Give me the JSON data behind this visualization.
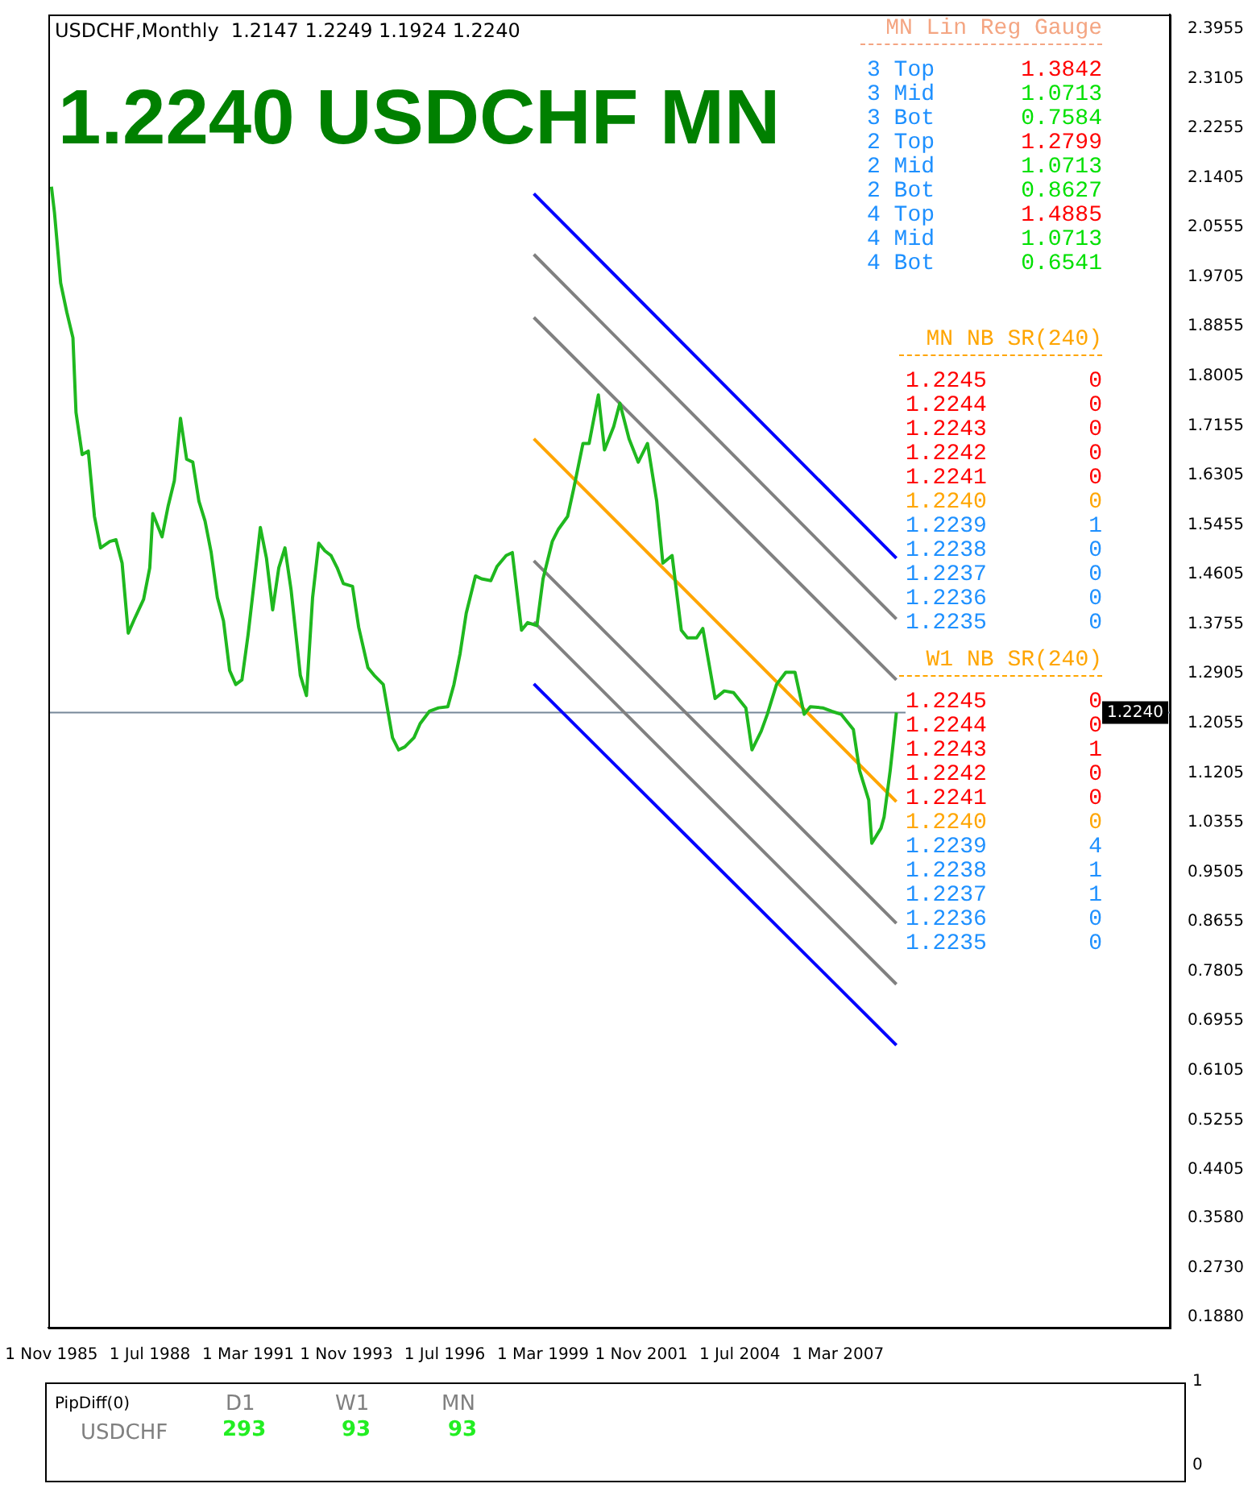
{
  "chart_data": [
    {
      "type": "line",
      "title": "1.2240 USDCHF MN",
      "subtitle": "USDCHF,Monthly  1.2147 1.2249 1.1924 1.2240",
      "marker": "none",
      "line_style": "solid",
      "xlim": [
        "1985-10",
        "2016-03"
      ],
      "xticks": [
        {
          "value": "1985-11",
          "label": "1 Nov 1985"
        },
        {
          "value": "1988-07",
          "label": "1 Jul 1988"
        },
        {
          "value": "1991-03",
          "label": "1 Mar 1991"
        },
        {
          "value": "1993-11",
          "label": "1 Nov 1993"
        },
        {
          "value": "1996-07",
          "label": "1 Jul 1996"
        },
        {
          "value": "1999-03",
          "label": "1 Mar 1999"
        },
        {
          "value": "2001-11",
          "label": "1 Nov 2001"
        },
        {
          "value": "2004-07",
          "label": "1 Jul 2004"
        },
        {
          "value": "2007-03",
          "label": "1 Mar 2007"
        }
      ],
      "ylim": [
        0.17,
        2.42
      ],
      "yticks": [
        2.3955,
        2.3105,
        2.2255,
        2.1405,
        2.0555,
        1.9705,
        1.8855,
        1.8005,
        1.7155,
        1.6305,
        1.5455,
        1.4605,
        1.3755,
        1.2905,
        1.2055,
        1.1205,
        1.0355,
        0.9505,
        0.8655,
        0.7805,
        0.6955,
        0.6105,
        0.5255,
        0.4405,
        {
          "value": 0.358,
          "label": "0.3580"
        },
        {
          "value": 0.273,
          "label": "0.2730"
        },
        {
          "value": 0.188,
          "label": "0.1880"
        }
      ],
      "ref_lines": [
        {
          "axis": "y",
          "value": 1.224,
          "label": "1.2240",
          "color": "#778899"
        }
      ],
      "series": [
        {
          "color": "#1fb81f",
          "x": [
            "1985-11",
            "1985-12",
            "1986-02",
            "1986-04",
            "1986-06",
            "1986-07",
            "1986-09",
            "1986-11",
            "1987-01",
            "1987-03",
            "1987-06",
            "1987-08",
            "1987-10",
            "1987-12",
            "1988-02",
            "1988-05",
            "1988-07",
            "1988-08",
            "1988-11",
            "1989-01",
            "1989-03",
            "1989-05",
            "1989-07",
            "1989-09",
            "1989-11",
            "1990-01",
            "1990-03",
            "1990-05",
            "1990-07",
            "1990-09",
            "1990-11",
            "1991-01",
            "1991-03",
            "1991-05",
            "1991-07",
            "1991-09",
            "1991-11",
            "1992-01",
            "1992-03",
            "1992-05",
            "1992-08",
            "1992-10",
            "1992-12",
            "1993-02",
            "1993-04",
            "1993-06",
            "1993-08",
            "1993-10",
            "1994-01",
            "1994-03",
            "1994-06",
            "1994-08",
            "1994-11",
            "1995-02",
            "1995-04",
            "1995-06",
            "1995-09",
            "1995-11",
            "1996-02",
            "1996-05",
            "1996-08",
            "1996-10",
            "1996-12",
            "1997-02",
            "1997-05",
            "1997-07",
            "1997-10",
            "1997-12",
            "1998-03",
            "1998-05",
            "1998-08",
            "1998-10",
            "1999-01",
            "1999-03",
            "1999-06",
            "1999-08",
            "1999-11",
            "2000-01",
            "2000-04",
            "2000-06",
            "2000-09",
            "2000-11",
            "2001-02",
            "2001-04",
            "2001-07",
            "2001-10",
            "2002-01",
            "2002-04",
            "2002-06",
            "2002-09",
            "2002-12",
            "2003-02",
            "2003-05",
            "2003-07",
            "2003-11",
            "2004-02",
            "2004-05",
            "2004-09",
            "2004-11",
            "2005-02",
            "2005-04",
            "2005-07",
            "2005-10",
            "2006-01",
            "2006-04",
            "2006-06",
            "2006-10",
            "2007-01",
            "2007-04",
            "2007-08",
            "2007-10",
            "2008-01",
            "2008-02",
            "2008-05",
            "2008-06",
            "2008-08",
            "2008-09",
            "2008-10"
          ],
          "values": [
            2.125,
            2.08,
            1.96,
            1.91,
            1.866,
            1.738,
            1.666,
            1.672,
            1.56,
            1.506,
            1.517,
            1.52,
            1.48,
            1.36,
            1.384,
            1.418,
            1.472,
            1.565,
            1.525,
            1.578,
            1.621,
            1.728,
            1.658,
            1.653,
            1.586,
            1.552,
            1.498,
            1.421,
            1.381,
            1.296,
            1.272,
            1.28,
            1.357,
            1.448,
            1.541,
            1.488,
            1.4,
            1.472,
            1.506,
            1.434,
            1.288,
            1.253,
            1.421,
            1.514,
            1.501,
            1.493,
            1.472,
            1.445,
            1.44,
            1.37,
            1.301,
            1.288,
            1.272,
            1.181,
            1.16,
            1.165,
            1.181,
            1.205,
            1.226,
            1.232,
            1.234,
            1.272,
            1.325,
            1.394,
            1.458,
            1.453,
            1.45,
            1.474,
            1.493,
            1.498,
            1.365,
            1.378,
            1.373,
            1.453,
            1.517,
            1.538,
            1.56,
            1.608,
            1.685,
            1.685,
            1.768,
            1.674,
            1.714,
            1.754,
            1.693,
            1.653,
            1.685,
            1.586,
            1.48,
            1.493,
            1.365,
            1.352,
            1.352,
            1.368,
            1.248,
            1.261,
            1.258,
            1.232,
            1.16,
            1.192,
            1.221,
            1.272,
            1.293,
            1.293,
            1.221,
            1.234,
            1.232,
            1.226,
            1.221,
            1.195,
            1.125,
            1.074,
            1.0,
            1.026,
            1.045,
            1.125,
            1.173,
            1.224
          ]
        },
        {
          "color": "#0000ff",
          "x": [
            "1998-12",
            "2008-10"
          ],
          "values": [
            2.113,
            1.4885
          ]
        },
        {
          "color": "#808080",
          "x": [
            "1998-12",
            "2008-10"
          ],
          "values": [
            2.009,
            1.3842
          ]
        },
        {
          "color": "#808080",
          "x": [
            "1998-12",
            "2008-10"
          ],
          "values": [
            1.901,
            1.2799
          ]
        },
        {
          "color": "#ffa500",
          "x": [
            "1998-12",
            "2008-10"
          ],
          "values": [
            1.693,
            1.0713
          ]
        },
        {
          "color": "#808080",
          "x": [
            "1998-12",
            "2008-10"
          ],
          "values": [
            1.484,
            0.8627
          ]
        },
        {
          "color": "#808080",
          "x": [
            "1998-12",
            "2008-10"
          ],
          "values": [
            1.379,
            0.7584
          ]
        },
        {
          "color": "#0000ff",
          "x": [
            "1998-12",
            "2008-10"
          ],
          "values": [
            1.273,
            0.6541
          ]
        }
      ],
      "annotations": [
        "MN Lin Reg Gauge",
        "3 Top  1.3842",
        "3 Mid  1.0713",
        "3 Bot  0.7584",
        "2 Top  1.2799",
        "2 Mid  1.0713",
        "2 Bot  0.8627",
        "4 Top  1.4885",
        "4 Mid  1.0713",
        "4 Bot  0.6541",
        "MN NB SR(240)",
        "1.2245  0",
        "1.2244  0",
        "1.2243  0",
        "1.2242  0",
        "1.2241  0",
        "1.2240  0",
        "1.2239  1",
        "1.2238  0",
        "1.2237  0",
        "1.2236  0",
        "1.2235  0",
        "W1 NB SR(240)",
        "1.2245  0",
        "1.2244  0",
        "1.2243  1",
        "1.2242  0",
        "1.2241  0",
        "1.2240  0",
        "1.2239  4",
        "1.2238  1",
        "1.2237  1",
        "1.2236  0",
        "1.2235  0"
      ]
    },
    {
      "type": "other",
      "annotations": [
        "PipDiff(0)",
        "D1",
        "W1",
        "MN",
        "USDCHF",
        "293",
        "93",
        "93",
        "1",
        "0"
      ]
    }
  ]
}
